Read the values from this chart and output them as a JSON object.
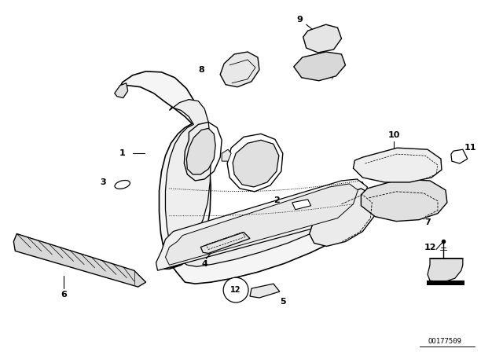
{
  "background_color": "#ffffff",
  "line_color": "#000000",
  "fig_width": 6.4,
  "fig_height": 4.48,
  "dpi": 100,
  "watermark": "OO177509"
}
